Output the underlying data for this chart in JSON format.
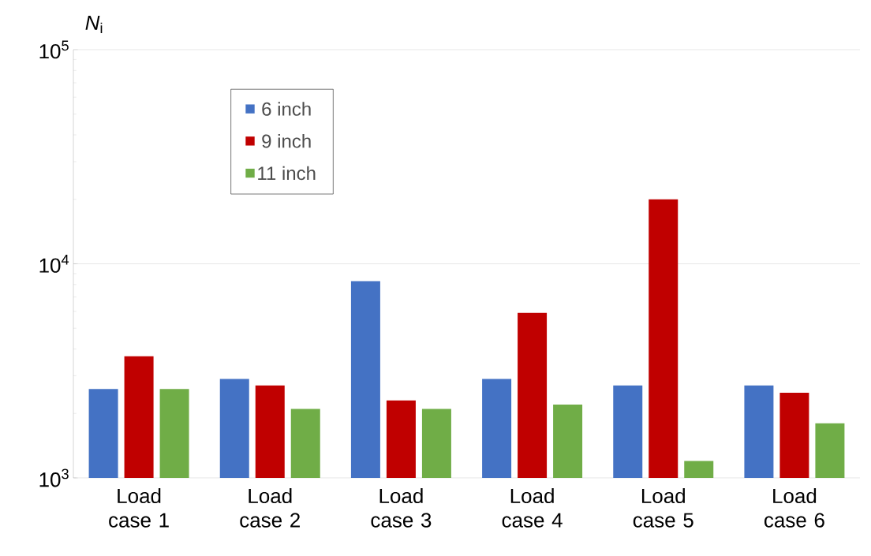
{
  "chart_data": {
    "type": "bar",
    "ylabel": "*N*$_{i}$",
    "categories": [
      "Load case 1",
      "Load case 2",
      "Load case 3",
      "Load case 4",
      "Load case 5",
      "Load case 6"
    ],
    "series": [
      {
        "name": "6 inch",
        "color": "#4472c4",
        "values": [
          2600,
          2900,
          8300,
          2900,
          2700,
          2700
        ]
      },
      {
        "name": "9 inch",
        "color": "#c00000",
        "values": [
          3700,
          2700,
          2300,
          5900,
          20000,
          2500
        ]
      },
      {
        "name": "11 inch",
        "color": "#70ad47",
        "values": [
          2600,
          2100,
          2100,
          2200,
          1200,
          1800
        ]
      }
    ],
    "log": "y",
    "ylim": [
      1000,
      100000
    ],
    "yticks": [
      {
        "value": 1000,
        "label": "10$^{3}$"
      },
      {
        "value": 10000,
        "label": "10$^{4}$"
      },
      {
        "value": 100000,
        "label": "10$^{5}$"
      }
    ],
    "grid": "y",
    "legend": "top left"
  }
}
